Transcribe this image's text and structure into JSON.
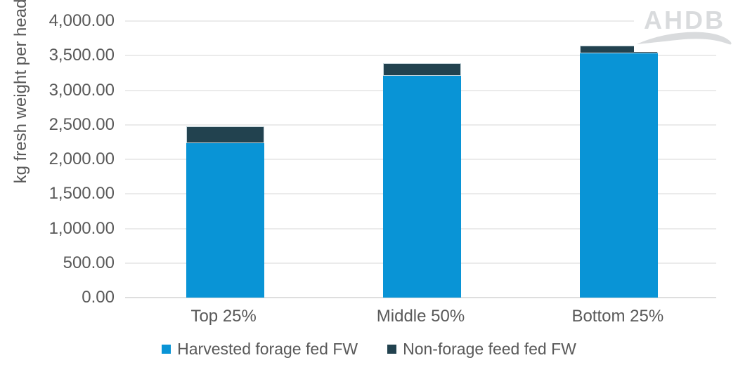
{
  "chart_data": {
    "type": "bar",
    "stacked": true,
    "title": "",
    "categories": [
      "Top 25%",
      "Middle 50%",
      "Bottom 25%"
    ],
    "series": [
      {
        "name": "Harvested forage fed FW",
        "color": "#0994d6",
        "values": [
          2230,
          3210,
          3535
        ]
      },
      {
        "name": "Non-forage feed fed FW",
        "color": "#22424f",
        "values": [
          250,
          185,
          105
        ]
      }
    ],
    "xlabel": "",
    "ylabel": "kg fresh weight per head",
    "ylim": [
      0,
      4000
    ],
    "ytick_step": 500,
    "yticks": [
      {
        "value": 0,
        "label": "0.00"
      },
      {
        "value": 500,
        "label": "500.00"
      },
      {
        "value": 1000,
        "label": "1,000.00"
      },
      {
        "value": 1500,
        "label": "1,500.00"
      },
      {
        "value": 2000,
        "label": "2,000.00"
      },
      {
        "value": 2500,
        "label": "2,500.00"
      },
      {
        "value": 3000,
        "label": "3,000.00"
      },
      {
        "value": 3500,
        "label": "3,500.00"
      },
      {
        "value": 4000,
        "label": "4,000.00"
      }
    ],
    "grid": true,
    "legend_position": "bottom"
  },
  "branding": {
    "logo_text": "AHDB"
  },
  "colors": {
    "text": "#595959",
    "gridline": "#ebebeb",
    "axis_line": "#dedede",
    "harvested_forage": "#0994d6",
    "non_forage": "#22424f",
    "logo": "#d9dbdd",
    "background": "#ffffff"
  }
}
